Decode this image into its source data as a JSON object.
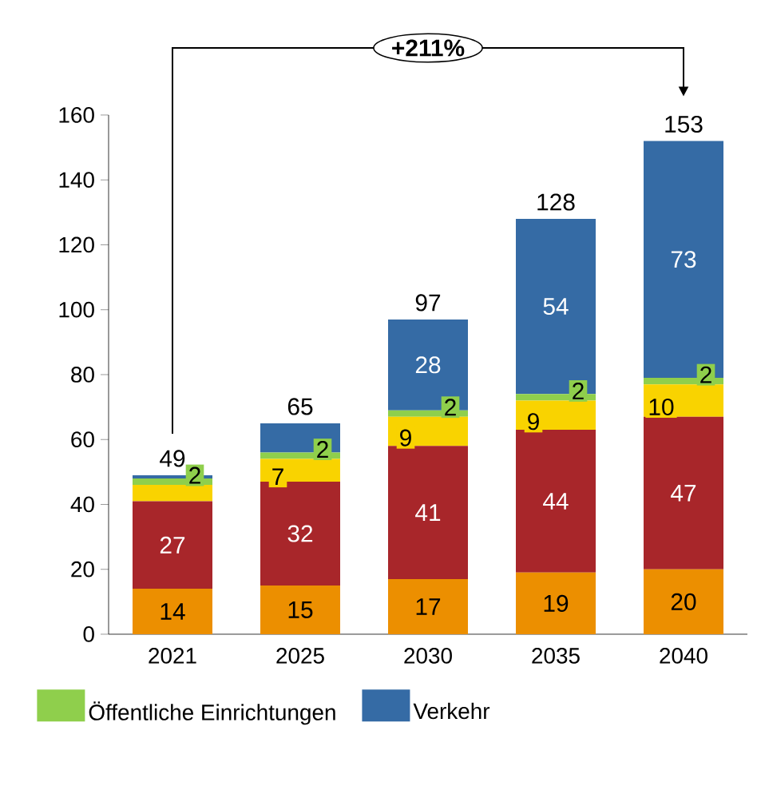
{
  "chart_data": {
    "type": "bar",
    "stacked": true,
    "categories": [
      "2021",
      "2025",
      "2030",
      "2035",
      "2040"
    ],
    "series": [
      {
        "color": "#ec8f00",
        "values": [
          14,
          15,
          17,
          19,
          20
        ],
        "value_labels": [
          "14",
          "15",
          "17",
          "19",
          "20"
        ]
      },
      {
        "color": "#a8262a",
        "values": [
          27,
          32,
          41,
          44,
          47
        ],
        "value_labels": [
          "27",
          "32",
          "41",
          "44",
          "47"
        ]
      },
      {
        "color": "#f9d300",
        "values": [
          5,
          7,
          9,
          9,
          10
        ],
        "value_labels": [
          null,
          "7",
          "9",
          "9",
          "10"
        ]
      },
      {
        "name": "Öffentliche Einrichtungen",
        "color": "#8fcf4c",
        "values": [
          2,
          2,
          2,
          2,
          2
        ],
        "value_labels": [
          "2",
          "2",
          "2",
          "2",
          "2"
        ]
      },
      {
        "name": "Verkehr",
        "color": "#356ba5",
        "values": [
          1,
          9,
          28,
          54,
          73
        ],
        "value_labels": [
          null,
          null,
          "28",
          "54",
          "73"
        ]
      }
    ],
    "totals": [
      "49",
      "65",
      "97",
      "128",
      "153"
    ],
    "annotations": [
      "+211%"
    ],
    "ylim": [
      0,
      160
    ],
    "yticks": [
      0,
      20,
      40,
      60,
      80,
      100,
      120,
      140,
      160
    ],
    "grid": false,
    "legend": "bottom"
  }
}
